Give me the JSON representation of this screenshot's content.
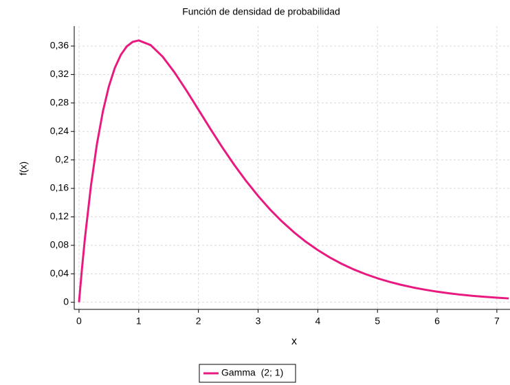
{
  "chart_data": {
    "type": "line",
    "title": "Función de densidad de probabilidad",
    "x_label": "x",
    "y_label": "f(x)",
    "x": [
      0,
      0.05,
      0.1,
      0.2,
      0.3,
      0.4,
      0.5,
      0.6,
      0.7,
      0.8,
      0.9,
      1.0,
      1.2,
      1.4,
      1.6,
      1.8,
      2.0,
      2.2,
      2.4,
      2.6,
      2.8,
      3.0,
      3.2,
      3.4,
      3.6,
      3.8,
      4.0,
      4.2,
      4.4,
      4.6,
      4.8,
      5.0,
      5.2,
      5.4,
      5.6,
      5.8,
      6.0,
      6.2,
      6.4,
      6.6,
      6.8,
      7.0,
      7.2
    ],
    "series": [
      {
        "name": "Gamma  (2; 1)",
        "color": "#e8197f",
        "values": [
          0,
          0.0476,
          0.0905,
          0.1637,
          0.2222,
          0.2681,
          0.3033,
          0.3293,
          0.3476,
          0.3595,
          0.3659,
          0.3679,
          0.3614,
          0.3452,
          0.323,
          0.2975,
          0.2707,
          0.2438,
          0.2177,
          0.1931,
          0.1703,
          0.1494,
          0.1304,
          0.1135,
          0.0984,
          0.085,
          0.0733,
          0.063,
          0.054,
          0.0462,
          0.0395,
          0.0337,
          0.0287,
          0.0244,
          0.0207,
          0.0176,
          0.0149,
          0.0126,
          0.0106,
          0.009,
          0.0076,
          0.0064,
          0.0054
        ]
      }
    ],
    "xlim": [
      -0.08,
      7.22
    ],
    "ylim": [
      -0.01,
      0.388
    ],
    "xticks": [
      0,
      1,
      2,
      3,
      4,
      5,
      6,
      7
    ],
    "yticks": [
      0,
      {
        "value": 0.04,
        "label": "0,04"
      },
      {
        "value": 0.08,
        "label": "0,08"
      },
      {
        "value": 0.12,
        "label": "0,12"
      },
      {
        "value": 0.16,
        "label": "0,16"
      },
      {
        "value": 0.2,
        "label": "0,2"
      },
      {
        "value": 0.24,
        "label": "0,24"
      },
      {
        "value": 0.28,
        "label": "0,28"
      },
      {
        "value": 0.32,
        "label": "0,32"
      },
      {
        "value": 0.36,
        "label": "0,36"
      }
    ],
    "grid": true,
    "legend": "bottom"
  }
}
